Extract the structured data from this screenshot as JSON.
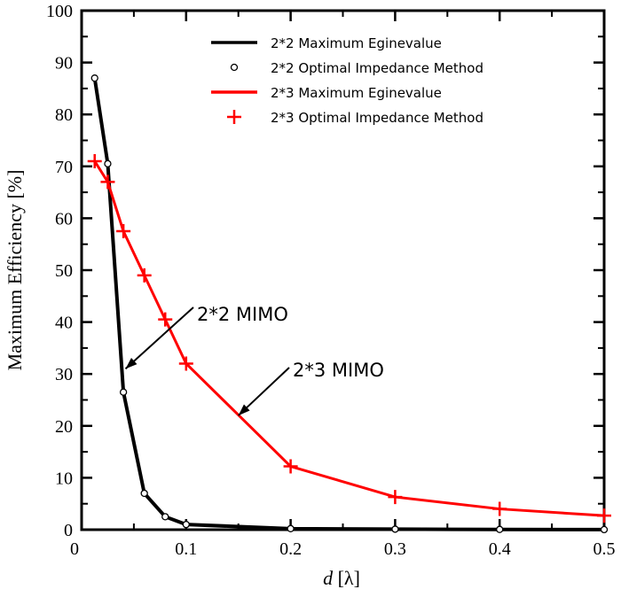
{
  "chart_data": {
    "type": "line",
    "title": "",
    "xlabel_italic": "d",
    "xlabel_rest": " [λ]",
    "ylabel": "Maximum Efficiency [%]",
    "xlim": [
      0,
      0.5
    ],
    "ylim": [
      0,
      100
    ],
    "xticks": [
      "0",
      "0.1",
      "0.2",
      "0.3",
      "0.4",
      "0.5"
    ],
    "yticks": [
      "0",
      "10",
      "20",
      "30",
      "40",
      "50",
      "60",
      "70",
      "80",
      "90",
      "100"
    ],
    "grid": false,
    "legend_placement": "top-right",
    "series": [
      {
        "name": "2*2 Maximum Eginevalue",
        "style": "line",
        "color": "#000000",
        "x": [
          0.0125,
          0.025,
          0.04,
          0.06,
          0.08,
          0.1,
          0.2,
          0.3,
          0.4,
          0.5
        ],
        "y": [
          87,
          70.5,
          26.5,
          7,
          2.5,
          1,
          0.2,
          0.1,
          0.05,
          0.02
        ]
      },
      {
        "name": "2*2 Optimal Impedance Method",
        "style": "circle-markers",
        "color": "#000000",
        "x": [
          0.0125,
          0.025,
          0.04,
          0.06,
          0.08,
          0.1,
          0.2,
          0.3,
          0.4,
          0.5
        ],
        "y": [
          87,
          70.5,
          26.5,
          7,
          2.5,
          1,
          0.2,
          0.1,
          0.05,
          0.02
        ]
      },
      {
        "name": "2*3 Maximum Eginevalue",
        "style": "line",
        "color": "#ff0000",
        "x": [
          0.0125,
          0.025,
          0.04,
          0.06,
          0.08,
          0.1,
          0.2,
          0.3,
          0.4,
          0.5
        ],
        "y": [
          71,
          67,
          57.5,
          49,
          40.5,
          32,
          12.2,
          6.3,
          4.0,
          2.7
        ]
      },
      {
        "name": "2*3 Optimal Impedance Method",
        "style": "plus-markers",
        "color": "#ff0000",
        "x": [
          0.0125,
          0.025,
          0.04,
          0.06,
          0.08,
          0.1,
          0.2,
          0.3,
          0.4,
          0.5
        ],
        "y": [
          71,
          67,
          57.5,
          49,
          40.5,
          32,
          12.2,
          6.3,
          4.0,
          2.7
        ]
      }
    ],
    "annotations": [
      {
        "text": "2*2 MIMO",
        "arrow_to": [
          0.042,
          31
        ]
      },
      {
        "text": "2*3 MIMO",
        "arrow_to": [
          0.15,
          22
        ]
      }
    ]
  }
}
